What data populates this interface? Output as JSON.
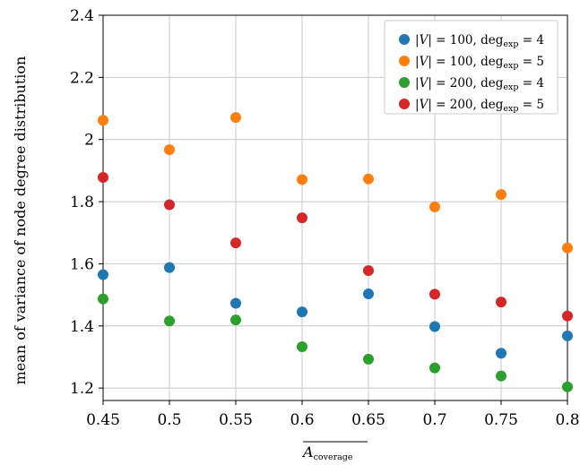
{
  "chart_data": {
    "type": "scatter",
    "title": "",
    "xlabel": {
      "base": "A",
      "sub": "coverage"
    },
    "ylabel": "mean of variance of node degree distribution",
    "xlim": [
      0.45,
      0.8
    ],
    "ylim": [
      1.16,
      2.4
    ],
    "x_ticks": [
      0.45,
      0.5,
      0.55,
      0.6,
      0.65,
      0.7,
      0.75,
      0.8
    ],
    "x_tick_labels": [
      "0.45",
      "0.5",
      "0.55",
      "0.6",
      "0.65",
      "0.7",
      "0.75",
      "0.8"
    ],
    "y_ticks": [
      1.2,
      1.4,
      1.6,
      1.8,
      2.0,
      2.2,
      2.4
    ],
    "y_tick_labels": [
      "1.2",
      "1.4",
      "1.6",
      "1.8",
      "2",
      "2.2",
      "2.4"
    ],
    "grid": true,
    "legend_position": "top-right",
    "x": [
      0.45,
      0.5,
      0.55,
      0.6,
      0.65,
      0.7,
      0.75,
      0.8
    ],
    "series": [
      {
        "V": "100",
        "deg": "4",
        "color": "#1f77b4",
        "values": [
          1.565,
          1.588,
          1.473,
          1.445,
          1.503,
          1.398,
          1.312,
          1.368
        ]
      },
      {
        "V": "100",
        "deg": "5",
        "color": "#ff7f0e",
        "values": [
          2.062,
          1.967,
          2.071,
          1.871,
          1.873,
          1.783,
          1.823,
          1.651
        ]
      },
      {
        "V": "200",
        "deg": "4",
        "color": "#2ca02c",
        "values": [
          1.487,
          1.416,
          1.419,
          1.333,
          1.293,
          1.265,
          1.239,
          1.204
        ]
      },
      {
        "V": "200",
        "deg": "5",
        "color": "#d62728",
        "values": [
          1.878,
          1.79,
          1.667,
          1.748,
          1.578,
          1.502,
          1.477,
          1.432
        ]
      }
    ]
  }
}
